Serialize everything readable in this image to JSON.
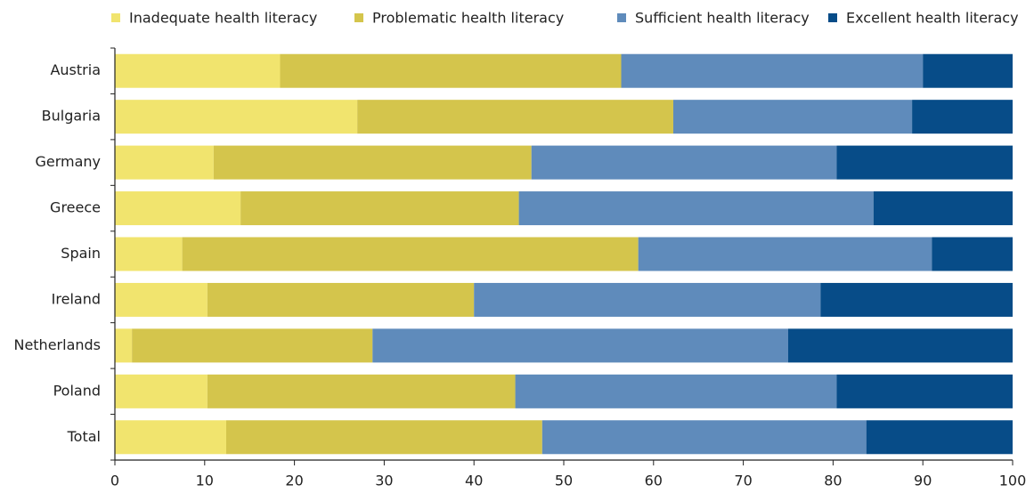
{
  "chart_data": {
    "type": "stacked-bar-horizontal",
    "categories": [
      "Austria",
      "Bulgaria",
      "Germany",
      "Greece",
      "Spain",
      "Ireland",
      "Netherlands",
      "Poland",
      "Total"
    ],
    "series": [
      {
        "name": "Inadequate health literacy",
        "color": "#f1e46e",
        "values": [
          18.4,
          27.0,
          11.0,
          14.0,
          7.5,
          10.3,
          1.9,
          10.3,
          12.4
        ]
      },
      {
        "name": "Problematic health literacy",
        "color": "#d4c54c",
        "values": [
          38.0,
          35.2,
          35.4,
          31.0,
          50.8,
          29.7,
          26.8,
          34.3,
          35.2
        ]
      },
      {
        "name": "Sufficient health literacy",
        "color": "#5f8bbb",
        "values": [
          33.6,
          26.6,
          34.0,
          39.5,
          32.7,
          38.6,
          46.3,
          35.8,
          36.1
        ]
      },
      {
        "name": "Excellent health literacy",
        "color": "#074c88",
        "values": [
          10.0,
          11.2,
          19.6,
          15.5,
          9.0,
          21.4,
          25.0,
          19.6,
          16.3
        ]
      }
    ],
    "xlim": [
      0,
      100
    ],
    "xticks": [
      0,
      10,
      20,
      30,
      40,
      50,
      60,
      70,
      80,
      90,
      100
    ],
    "legend": "top"
  }
}
